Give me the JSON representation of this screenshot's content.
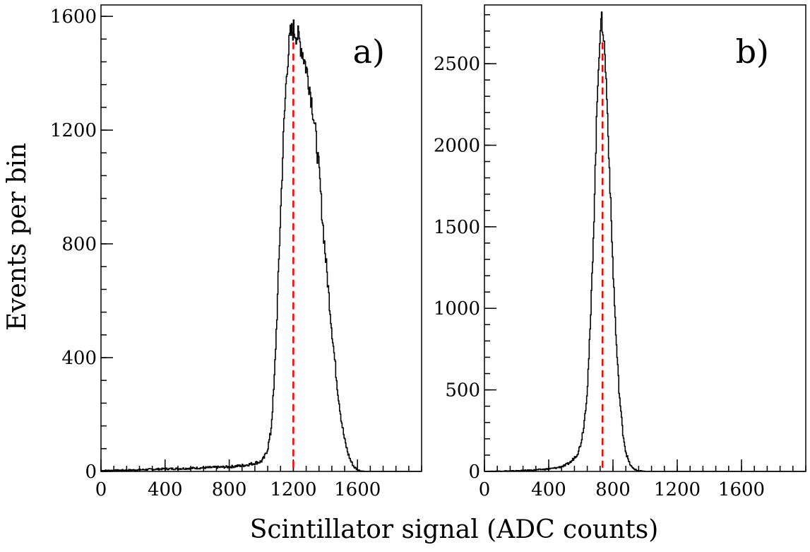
{
  "figure": {
    "ylabel": "Events per bin",
    "xlabel": "Scintillator signal (ADC counts)"
  },
  "chart_data": [
    {
      "type": "line",
      "panel_label": "a)",
      "title": "",
      "xlabel": "Scintillator signal (ADC counts)",
      "ylabel": "Events per bin",
      "xlim": [
        0,
        2000
      ],
      "ylim": [
        0,
        1640
      ],
      "x_ticks": [
        0,
        400,
        800,
        1200,
        1600
      ],
      "y_ticks": [
        0,
        400,
        800,
        1200,
        1600
      ],
      "x_minor_step": 80,
      "y_minor_step": 80,
      "grid": false,
      "series": [
        {
          "style": "histogram",
          "color": "#000000",
          "x": [
            0,
            100,
            200,
            300,
            400,
            500,
            600,
            700,
            800,
            900,
            950,
            1000,
            1020,
            1040,
            1060,
            1080,
            1100,
            1120,
            1140,
            1160,
            1180,
            1200,
            1220,
            1240,
            1260,
            1280,
            1300,
            1320,
            1340,
            1360,
            1380,
            1400,
            1420,
            1440,
            1460,
            1480,
            1500,
            1520,
            1540,
            1560,
            1580,
            1600,
            1620,
            1650,
            1700,
            1800,
            2000
          ],
          "y": [
            3,
            4,
            5,
            7,
            9,
            10,
            12,
            14,
            16,
            22,
            28,
            35,
            50,
            80,
            140,
            300,
            580,
            900,
            1200,
            1420,
            1530,
            1555,
            1540,
            1510,
            1470,
            1420,
            1360,
            1280,
            1180,
            1060,
            900,
            760,
            630,
            500,
            380,
            270,
            180,
            110,
            65,
            35,
            15,
            6,
            2,
            0,
            0,
            0,
            0
          ]
        }
      ],
      "marker_line": {
        "x": 1200,
        "color": "#ff0000",
        "style": "dashed"
      }
    },
    {
      "type": "line",
      "panel_label": "b)",
      "title": "",
      "xlabel": "Scintillator signal (ADC counts)",
      "ylabel": "Events per bin",
      "xlim": [
        0,
        2000
      ],
      "ylim": [
        0,
        2860
      ],
      "x_ticks": [
        0,
        400,
        800,
        1200,
        1600
      ],
      "y_ticks": [
        0,
        500,
        1000,
        1500,
        2000,
        2500
      ],
      "x_minor_step": 80,
      "y_minor_step": 100,
      "grid": false,
      "series": [
        {
          "style": "histogram",
          "color": "#000000",
          "x": [
            0,
            100,
            200,
            300,
            400,
            450,
            500,
            540,
            580,
            600,
            620,
            640,
            660,
            680,
            700,
            710,
            720,
            730,
            740,
            750,
            760,
            780,
            800,
            820,
            840,
            860,
            880,
            900,
            920,
            950,
            1000,
            1200,
            1600,
            2000
          ],
          "y": [
            0,
            2,
            4,
            8,
            15,
            22,
            35,
            60,
            110,
            170,
            290,
            500,
            900,
            1500,
            2200,
            2500,
            2700,
            2760,
            2700,
            2550,
            2350,
            1800,
            1250,
            800,
            470,
            250,
            120,
            55,
            22,
            6,
            0,
            0,
            0,
            0
          ]
        }
      ],
      "marker_line": {
        "x": 735,
        "color": "#ff0000",
        "style": "dashed"
      }
    }
  ]
}
